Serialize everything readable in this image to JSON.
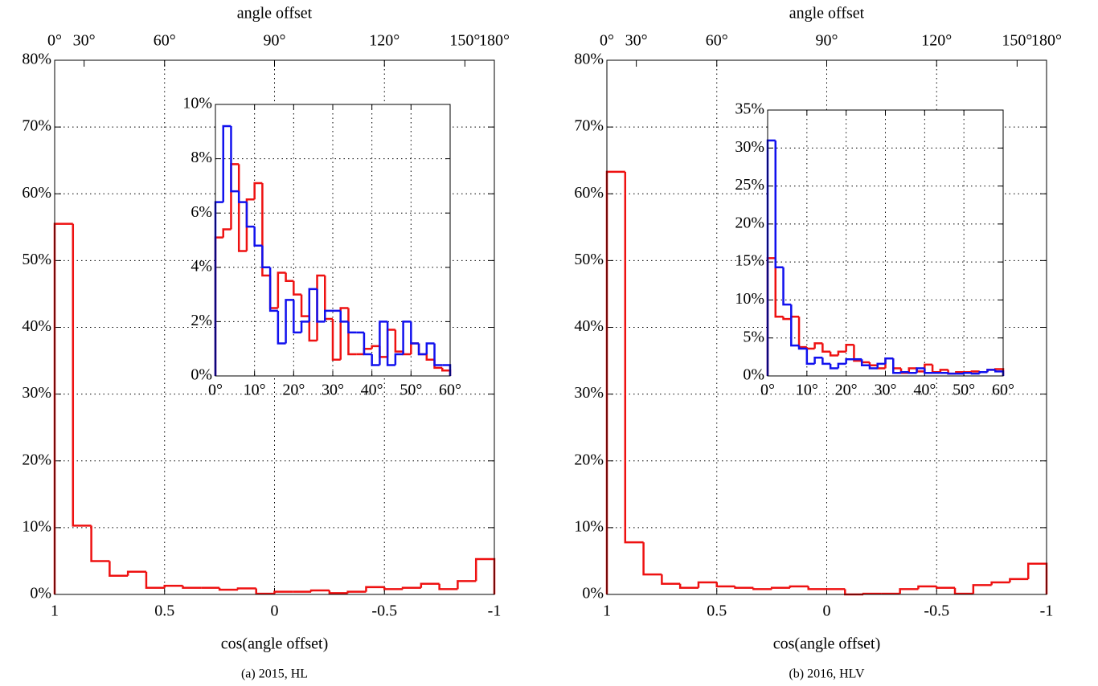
{
  "chart_data": [
    {
      "type": "histogram",
      "xlabel": "cos(angle offset)",
      "x2label": "angle offset",
      "caption": "(a) 2015, HL",
      "xlim": [
        1,
        -1
      ],
      "xticks": [
        1,
        0.5,
        0,
        -0.5,
        -1
      ],
      "x2scale": "cos",
      "x2ticks": [
        {
          "value": 0,
          "label": "0°"
        },
        {
          "value": 30,
          "label": "30°"
        },
        {
          "value": 60,
          "label": "60°"
        },
        {
          "value": 90,
          "label": "90°"
        },
        {
          "value": 120,
          "label": "120°"
        },
        {
          "value": 150,
          "label": "150°"
        },
        {
          "value": 180,
          "label": "180°"
        }
      ],
      "ylim": [
        0,
        80
      ],
      "yticks": [
        {
          "value": 0,
          "label": "0%"
        },
        {
          "value": 10,
          "label": "10%"
        },
        {
          "value": 20,
          "label": "20%"
        },
        {
          "value": 30,
          "label": "30%"
        },
        {
          "value": 40,
          "label": "40%"
        },
        {
          "value": 50,
          "label": "50%"
        },
        {
          "value": 60,
          "label": "60%"
        },
        {
          "value": 70,
          "label": "70%"
        },
        {
          "value": 80,
          "label": "80%"
        }
      ],
      "grid": true,
      "bins": [
        1,
        0.9167,
        0.8333,
        0.75,
        0.6667,
        0.5833,
        0.5,
        0.4167,
        0.3333,
        0.25,
        0.1667,
        0.0833,
        0,
        -0.0833,
        -0.1667,
        -0.25,
        -0.3333,
        -0.4167,
        -0.5,
        -0.5833,
        -0.6667,
        -0.75,
        -0.8333,
        -0.9167,
        -1
      ],
      "series": [
        {
          "color": "#ee1111",
          "values": [
            55.5,
            10.3,
            5.0,
            2.8,
            3.4,
            1.0,
            1.3,
            1.0,
            1.0,
            0.7,
            0.9,
            0.1,
            0.4,
            0.4,
            0.6,
            0.2,
            0.4,
            1.1,
            0.8,
            1.0,
            1.6,
            0.8,
            2.0,
            5.3
          ]
        }
      ]
    },
    {
      "type": "histogram",
      "xlim": [
        0,
        60
      ],
      "xticks": [
        {
          "value": 0,
          "label": "0°"
        },
        {
          "value": 10,
          "label": "10°"
        },
        {
          "value": 20,
          "label": "20°"
        },
        {
          "value": 30,
          "label": "30°"
        },
        {
          "value": 40,
          "label": "40°"
        },
        {
          "value": 50,
          "label": "50°"
        },
        {
          "value": 60,
          "label": "60°"
        }
      ],
      "ylim": [
        0,
        10
      ],
      "yticks": [
        {
          "value": 0,
          "label": "0%"
        },
        {
          "value": 2,
          "label": "2%"
        },
        {
          "value": 4,
          "label": "4%"
        },
        {
          "value": 6,
          "label": "6%"
        },
        {
          "value": 8,
          "label": "8%"
        },
        {
          "value": 10,
          "label": "10%"
        }
      ],
      "grid": true,
      "bins": [
        0,
        2,
        4,
        6,
        8,
        10,
        12,
        14,
        16,
        18,
        20,
        22,
        24,
        26,
        28,
        30,
        32,
        34,
        36,
        38,
        40,
        42,
        44,
        46,
        48,
        50,
        52,
        54,
        56,
        58,
        60
      ],
      "series": [
        {
          "color": "#ee1111",
          "values": [
            5.1,
            5.4,
            7.8,
            4.6,
            6.5,
            7.1,
            3.7,
            2.5,
            3.8,
            3.5,
            3.0,
            2.2,
            1.3,
            3.7,
            2.1,
            0.6,
            2.5,
            0.8,
            0.8,
            1.0,
            1.1,
            0.7,
            1.7,
            0.9,
            0.8,
            1.2,
            0.8,
            0.6,
            0.3,
            0.2
          ]
        },
        {
          "color": "#1111ee",
          "values": [
            6.4,
            9.2,
            6.8,
            6.4,
            5.5,
            4.8,
            4.0,
            2.4,
            1.2,
            2.8,
            1.6,
            2.0,
            3.2,
            2.0,
            2.4,
            2.4,
            2.0,
            1.6,
            1.6,
            0.8,
            0.4,
            2.0,
            0.4,
            0.8,
            2.0,
            1.2,
            0.8,
            1.2,
            0.4,
            0.4
          ]
        }
      ]
    },
    {
      "type": "histogram",
      "xlabel": "cos(angle offset)",
      "x2label": "angle offset",
      "caption": "(b) 2016, HLV",
      "xlim": [
        1,
        -1
      ],
      "xticks": [
        1,
        0.5,
        0,
        -0.5,
        -1
      ],
      "x2scale": "cos",
      "x2ticks": [
        {
          "value": 0,
          "label": "0°"
        },
        {
          "value": 30,
          "label": "30°"
        },
        {
          "value": 60,
          "label": "60°"
        },
        {
          "value": 90,
          "label": "90°"
        },
        {
          "value": 120,
          "label": "120°"
        },
        {
          "value": 150,
          "label": "150°"
        },
        {
          "value": 180,
          "label": "180°"
        }
      ],
      "ylim": [
        0,
        80
      ],
      "yticks": [
        {
          "value": 0,
          "label": "0%"
        },
        {
          "value": 10,
          "label": "10%"
        },
        {
          "value": 20,
          "label": "20%"
        },
        {
          "value": 30,
          "label": "30%"
        },
        {
          "value": 40,
          "label": "40%"
        },
        {
          "value": 50,
          "label": "50%"
        },
        {
          "value": 60,
          "label": "60%"
        },
        {
          "value": 70,
          "label": "70%"
        },
        {
          "value": 80,
          "label": "80%"
        }
      ],
      "grid": true,
      "bins": [
        1,
        0.9167,
        0.8333,
        0.75,
        0.6667,
        0.5833,
        0.5,
        0.4167,
        0.3333,
        0.25,
        0.1667,
        0.0833,
        0,
        -0.0833,
        -0.1667,
        -0.25,
        -0.3333,
        -0.4167,
        -0.5,
        -0.5833,
        -0.6667,
        -0.75,
        -0.8333,
        -0.9167,
        -1
      ],
      "series": [
        {
          "color": "#ee1111",
          "values": [
            63.3,
            7.8,
            3.0,
            1.6,
            1.0,
            1.8,
            1.2,
            1.0,
            0.8,
            1.0,
            1.2,
            0.8,
            0.8,
            0.0,
            0.1,
            0.1,
            0.8,
            1.2,
            1.0,
            0.1,
            1.4,
            1.8,
            2.3,
            4.6
          ]
        }
      ]
    },
    {
      "type": "histogram",
      "xlim": [
        0,
        60
      ],
      "xticks": [
        {
          "value": 0,
          "label": "0°"
        },
        {
          "value": 10,
          "label": "10°"
        },
        {
          "value": 20,
          "label": "20°"
        },
        {
          "value": 30,
          "label": "30°"
        },
        {
          "value": 40,
          "label": "40°"
        },
        {
          "value": 50,
          "label": "50°"
        },
        {
          "value": 60,
          "label": "60°"
        }
      ],
      "ylim": [
        0,
        35
      ],
      "yticks": [
        {
          "value": 0,
          "label": "0%"
        },
        {
          "value": 5,
          "label": "5%"
        },
        {
          "value": 10,
          "label": "10%"
        },
        {
          "value": 15,
          "label": "15%"
        },
        {
          "value": 20,
          "label": "20%"
        },
        {
          "value": 25,
          "label": "25%"
        },
        {
          "value": 30,
          "label": "30%"
        },
        {
          "value": 35,
          "label": "35%"
        }
      ],
      "grid": true,
      "bins": [
        0,
        2,
        4,
        6,
        8,
        10,
        12,
        14,
        16,
        18,
        20,
        22,
        24,
        26,
        28,
        30,
        32,
        34,
        36,
        38,
        40,
        42,
        44,
        46,
        48,
        50,
        52,
        54,
        56,
        58,
        60
      ],
      "series": [
        {
          "color": "#ee1111",
          "values": [
            15.5,
            7.8,
            7.5,
            7.8,
            3.8,
            3.6,
            4.3,
            3.2,
            2.7,
            3.2,
            4.1,
            2.0,
            1.8,
            1.4,
            1.0,
            2.3,
            1.0,
            0.4,
            1.0,
            0.6,
            1.5,
            0.5,
            0.8,
            0.3,
            0.5,
            0.5,
            0.6,
            0.5,
            0.8,
            0.9
          ]
        },
        {
          "color": "#1111ee",
          "values": [
            31.0,
            14.3,
            9.4,
            4.0,
            3.6,
            1.6,
            2.4,
            1.6,
            1.0,
            1.6,
            2.2,
            2.2,
            1.4,
            1.0,
            1.6,
            2.3,
            0.4,
            0.5,
            0.4,
            1.0,
            0.4,
            0.4,
            0.4,
            0.3,
            0.3,
            0.4,
            0.3,
            0.5,
            0.8,
            0.6
          ]
        }
      ]
    }
  ]
}
